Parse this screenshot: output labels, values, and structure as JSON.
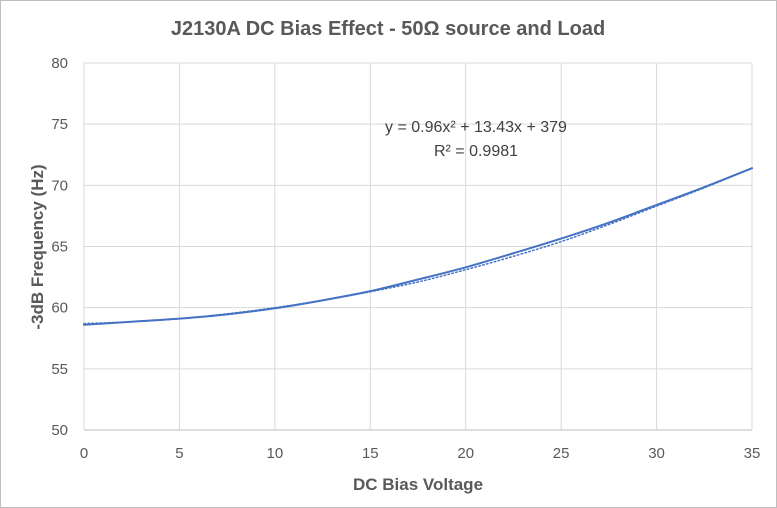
{
  "chart_data": {
    "type": "line",
    "title": "J2130A DC Bias Effect - 50Ω source and Load",
    "xlabel": "DC Bias Voltage",
    "ylabel": "-3dB Frequency (Hz)",
    "xlim": [
      0,
      35
    ],
    "ylim": [
      50,
      80
    ],
    "x_ticks": [
      0,
      5,
      10,
      15,
      20,
      25,
      30,
      35
    ],
    "y_ticks": [
      50,
      55,
      60,
      65,
      70,
      75,
      80
    ],
    "grid": true,
    "legend": "none",
    "series": [
      {
        "style": "solid",
        "color": "#4472c4",
        "x": [
          0,
          2.5,
          5,
          7.5,
          10,
          12.5,
          15,
          17.5,
          20,
          22.5,
          25,
          27.5,
          30,
          32.5,
          35
        ],
        "y": [
          58.6,
          58.85,
          59.1,
          59.45,
          59.95,
          60.6,
          61.35,
          62.3,
          63.3,
          64.45,
          65.65,
          66.95,
          68.4,
          69.85,
          71.4
        ]
      },
      {
        "style": "dotted",
        "color": "#4472c4",
        "kind": "trendline",
        "x": [
          0,
          2.5,
          5,
          7.5,
          10,
          12.5,
          15,
          17.5,
          20,
          22.5,
          25,
          27.5,
          30,
          32.5,
          35
        ],
        "y": [
          58.7,
          58.85,
          59.1,
          59.5,
          60.0,
          60.6,
          61.3,
          62.1,
          63.1,
          64.2,
          65.4,
          66.8,
          68.3,
          69.8,
          71.4
        ]
      }
    ],
    "annotations": {
      "equation": "y = 0.96x² + 13.43x + 379",
      "r_squared": "R² = 0.9981"
    }
  }
}
